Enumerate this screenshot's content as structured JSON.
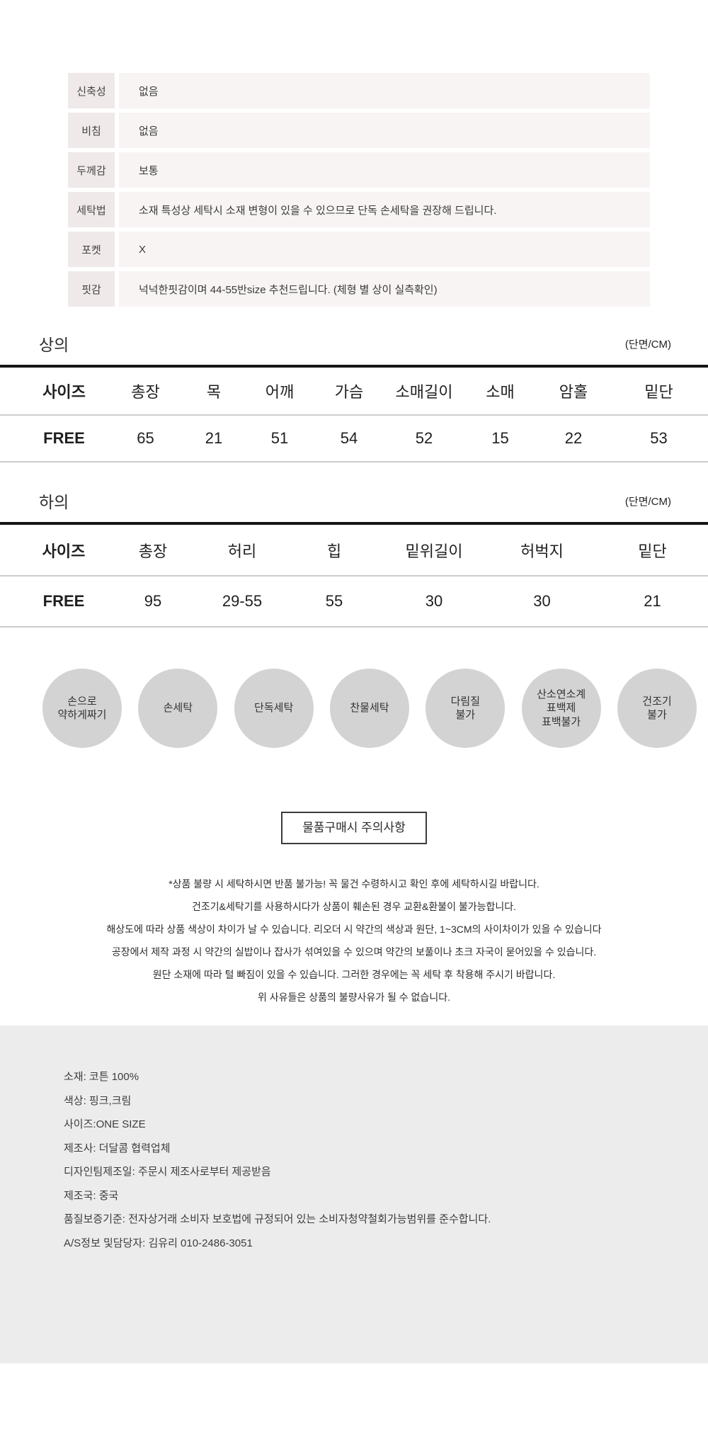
{
  "colors": {
    "spec_label_bg": "#efe9e9",
    "spec_value_bg": "#f8f4f4",
    "circle_bg": "#d3d3d3",
    "info_box_bg": "#ececec",
    "rule_dark": "#161616",
    "rule_light": "#cccccc"
  },
  "spec_table": {
    "rows": [
      {
        "label": "신축성",
        "value": "없음"
      },
      {
        "label": "비침",
        "value": "없음"
      },
      {
        "label": "두께감",
        "value": "보통"
      },
      {
        "label": "세탁법",
        "value": "소재 특성상 세탁시 소재 변형이 있을 수 있으므로 단독 손세탁을 권장해 드립니다."
      },
      {
        "label": "포켓",
        "value": "X"
      },
      {
        "label": "핏감",
        "value": "넉넉한핏감이며 44-55반size 추천드립니다. (체형 별 상이 실측확인)"
      }
    ]
  },
  "size_tables": [
    {
      "title": "상의",
      "unit": "(단면/CM)",
      "headers": [
        "사이즈",
        "총장",
        "목",
        "어깨",
        "가슴",
        "소매길이",
        "소매",
        "암홀",
        "밑단"
      ],
      "row": {
        "size": "FREE",
        "values": [
          "65",
          "21",
          "51",
          "54",
          "52",
          "15",
          "22",
          "53"
        ]
      }
    },
    {
      "title": "하의",
      "unit": "(단면/CM)",
      "headers": [
        "사이즈",
        "총장",
        "허리",
        "힙",
        "밑위길이",
        "허벅지",
        "밑단"
      ],
      "row": {
        "size": "FREE",
        "values": [
          "95",
          "29-55",
          "55",
          "30",
          "30",
          "21"
        ]
      }
    }
  ],
  "care_icons": [
    {
      "label": "손으로\n약하게짜기"
    },
    {
      "label": "손세탁"
    },
    {
      "label": "단독세탁"
    },
    {
      "label": "찬물세탁"
    },
    {
      "label": "다림질\n불가"
    },
    {
      "label": "산소연소계\n표백제\n표백불가"
    },
    {
      "label": "건조기\n불가"
    }
  ],
  "notice": {
    "title": "물품구매시 주의사항",
    "lines": [
      "*상품 불량 시 세탁하시면 반품 불가능! 꼭 물건 수령하시고 확인 후에 세탁하시길 바랍니다.",
      "건조기&세탁기를 사용하시다가 상품이 훼손된 경우 교환&환불이 불가능합니다.",
      "해상도에 따라 상품 색상이 차이가 날 수 있습니다. 리오더 시 약간의 색상과 원단, 1~3CM의 사이차이가 있을 수 있습니다",
      "공장에서 제작 과정 시 약간의 실밥이나 잡사가 섞여있을 수 있으며 약간의 보풀이나 초크 자국이 묻어있을 수 있습니다.",
      "원단 소재에 따라 털 빠짐이 있을 수 있습니다. 그러한 경우에는 꼭 세탁 후 착용해 주시기 바랍니다.",
      "위 사유들은 상품의 불량사유가 될 수 없습니다."
    ]
  },
  "product_info": {
    "lines": [
      "소재: 코튼 100%",
      "색상: 핑크,크림",
      "사이즈:ONE SIZE",
      "제조사: 더달콤 협력업체",
      "디자인팀제조일: 주문시 제조사로부터 제공받음",
      "제조국: 중국",
      "품질보증기준: 전자상거래 소비자 보호법에 규정되어 있는 소비자청약철회가능범위를 준수합니다.",
      "A/S정보 및담당자: 김유리 010-2486-3051"
    ]
  }
}
